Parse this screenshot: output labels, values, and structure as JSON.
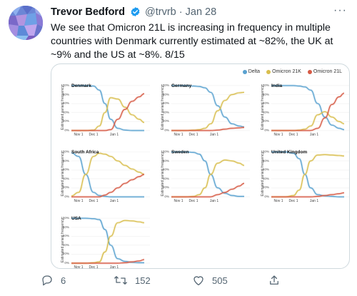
{
  "tweet": {
    "author_name": "Trevor Bedford",
    "handle": "@trvrb",
    "separator": "·",
    "date": "Jan 28",
    "more_label": "···",
    "text": "We see that Omicron 21L is increasing in frequency in multiple countries with Denmark currently estimated at ~82%, the UK at ~9% and the US at ~8%. 8/15",
    "colors": {
      "verified": "#1d9bf0",
      "avatar": "#6b86d6"
    }
  },
  "legend": [
    {
      "label": "Delta",
      "color": "#5aa2d0"
    },
    {
      "label": "Omicron 21K",
      "color": "#d9be4e"
    },
    {
      "label": "Omicron 21L",
      "color": "#d65a45"
    }
  ],
  "axis": {
    "y_label": "Estimated variant frequency",
    "y_ticks": [
      "100%",
      "80%",
      "60%",
      "40%",
      "20%",
      "0%"
    ],
    "x_ticks": [
      "Nov 1",
      "Dec 1",
      "Jan 1"
    ]
  },
  "chart_data": {
    "type": "line",
    "x": [
      "Oct 15",
      "Nov 1",
      "Nov 15",
      "Dec 1",
      "Dec 8",
      "Dec 15",
      "Dec 22",
      "Jan 1",
      "Jan 8",
      "Jan 15",
      "Jan 22",
      "Jan 28"
    ],
    "ylim": [
      0,
      1
    ],
    "panels": [
      {
        "name": "Denmark",
        "series": [
          {
            "name": "Delta",
            "values": [
              1.0,
              1.0,
              1.0,
              0.99,
              0.9,
              0.6,
              0.25,
              0.05,
              0.01,
              0.0,
              0.0,
              0.0
            ]
          },
          {
            "name": "Omicron 21K",
            "values": [
              0.0,
              0.0,
              0.0,
              0.01,
              0.1,
              0.4,
              0.73,
              0.7,
              0.52,
              0.35,
              0.25,
              0.18
            ]
          },
          {
            "name": "Omicron 21L",
            "values": [
              0.0,
              0.0,
              0.0,
              0.0,
              0.0,
              0.0,
              0.02,
              0.25,
              0.47,
              0.65,
              0.75,
              0.82
            ]
          }
        ]
      },
      {
        "name": "Germany",
        "series": [
          {
            "name": "Delta",
            "values": [
              1.0,
              1.0,
              1.0,
              0.99,
              0.98,
              0.95,
              0.85,
              0.55,
              0.3,
              0.15,
              0.1,
              0.08
            ]
          },
          {
            "name": "Omicron 21K",
            "values": [
              0.0,
              0.0,
              0.0,
              0.01,
              0.02,
              0.05,
              0.15,
              0.44,
              0.67,
              0.8,
              0.84,
              0.85
            ]
          },
          {
            "name": "Omicron 21L",
            "values": [
              0.0,
              0.0,
              0.0,
              0.0,
              0.0,
              0.0,
              0.0,
              0.01,
              0.03,
              0.05,
              0.06,
              0.07
            ]
          }
        ]
      },
      {
        "name": "India",
        "series": [
          {
            "name": "Delta",
            "values": [
              1.0,
              1.0,
              1.0,
              1.0,
              0.99,
              0.97,
              0.9,
              0.6,
              0.3,
              0.12,
              0.05,
              0.02
            ]
          },
          {
            "name": "Omicron 21K",
            "values": [
              0.0,
              0.0,
              0.0,
              0.0,
              0.01,
              0.03,
              0.1,
              0.35,
              0.42,
              0.3,
              0.2,
              0.15
            ]
          },
          {
            "name": "Omicron 21L",
            "values": [
              0.0,
              0.0,
              0.0,
              0.0,
              0.0,
              0.0,
              0.0,
              0.05,
              0.28,
              0.58,
              0.75,
              0.83
            ]
          }
        ]
      },
      {
        "name": "South Africa",
        "series": [
          {
            "name": "Delta",
            "values": [
              0.98,
              0.9,
              0.5,
              0.1,
              0.03,
              0.01,
              0.0,
              0.0,
              0.0,
              0.0,
              0.0,
              0.0
            ]
          },
          {
            "name": "Omicron 21K",
            "values": [
              0.02,
              0.1,
              0.5,
              0.9,
              0.97,
              0.95,
              0.9,
              0.8,
              0.7,
              0.62,
              0.55,
              0.5
            ]
          },
          {
            "name": "Omicron 21L",
            "values": [
              0.0,
              0.0,
              0.0,
              0.0,
              0.0,
              0.04,
              0.1,
              0.2,
              0.3,
              0.38,
              0.45,
              0.5
            ]
          }
        ]
      },
      {
        "name": "Sweden",
        "series": [
          {
            "name": "Delta",
            "values": [
              1.0,
              1.0,
              1.0,
              0.99,
              0.95,
              0.8,
              0.5,
              0.2,
              0.08,
              0.03,
              0.01,
              0.01
            ]
          },
          {
            "name": "Omicron 21K",
            "values": [
              0.0,
              0.0,
              0.0,
              0.01,
              0.05,
              0.2,
              0.5,
              0.75,
              0.82,
              0.8,
              0.75,
              0.7
            ]
          },
          {
            "name": "Omicron 21L",
            "values": [
              0.0,
              0.0,
              0.0,
              0.0,
              0.0,
              0.0,
              0.0,
              0.05,
              0.1,
              0.17,
              0.24,
              0.3
            ]
          }
        ]
      },
      {
        "name": "United Kingdom",
        "series": [
          {
            "name": "Delta",
            "values": [
              1.0,
              1.0,
              1.0,
              0.97,
              0.85,
              0.5,
              0.2,
              0.05,
              0.02,
              0.01,
              0.0,
              0.0
            ]
          },
          {
            "name": "Omicron 21K",
            "values": [
              0.0,
              0.0,
              0.0,
              0.03,
              0.15,
              0.5,
              0.8,
              0.93,
              0.94,
              0.93,
              0.92,
              0.91
            ]
          },
          {
            "name": "Omicron 21L",
            "values": [
              0.0,
              0.0,
              0.0,
              0.0,
              0.0,
              0.0,
              0.0,
              0.01,
              0.03,
              0.05,
              0.07,
              0.09
            ]
          }
        ]
      },
      {
        "name": "USA",
        "series": [
          {
            "name": "Delta",
            "values": [
              1.0,
              1.0,
              1.0,
              0.99,
              0.97,
              0.75,
              0.4,
              0.1,
              0.04,
              0.02,
              0.01,
              0.01
            ]
          },
          {
            "name": "Omicron 21K",
            "values": [
              0.0,
              0.0,
              0.0,
              0.01,
              0.03,
              0.25,
              0.6,
              0.9,
              0.95,
              0.94,
              0.92,
              0.9
            ]
          },
          {
            "name": "Omicron 21L",
            "values": [
              0.0,
              0.0,
              0.0,
              0.0,
              0.0,
              0.0,
              0.0,
              0.0,
              0.01,
              0.03,
              0.05,
              0.08
            ]
          }
        ]
      }
    ]
  },
  "actions": {
    "reply_count": "6",
    "retweet_count": "152",
    "like_count": "505"
  }
}
